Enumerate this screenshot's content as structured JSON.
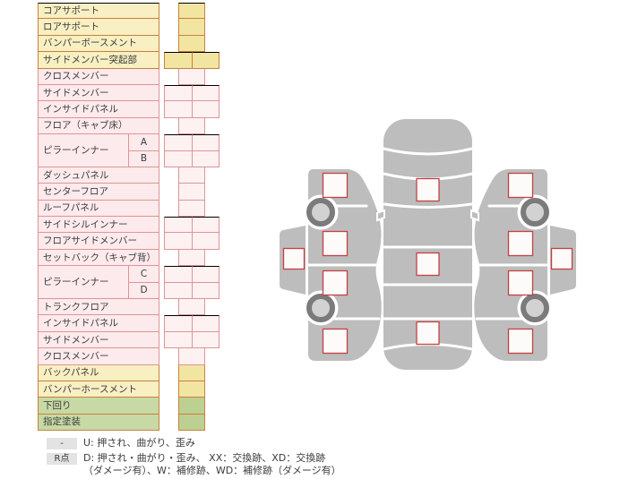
{
  "colors": {
    "text": "#3c3c3c",
    "yellow_bg": "#f8efc2",
    "yellow_cell_bg": "#f2e5a2",
    "warm_border": "#c9803a",
    "pink_bg": "#fdeaec",
    "pink_cell_bg": "#fdf1f2",
    "pink_border": "#dc9595",
    "green_bg": "#c7d9a5",
    "green_cell_bg": "#bcd191",
    "badge_bg": "#e3e3e3",
    "car_gray": "#bdbdbd",
    "wheel_ring": "#7b7b7b",
    "wheel_hub": "#d2d2d2",
    "mark_red": "#c64141",
    "mark_fill": "#fdfafa"
  },
  "parts_table": {
    "rows": [
      {
        "label": "コアサポート",
        "category": "yellow",
        "cells": 1
      },
      {
        "label": "ロアサポート",
        "category": "yellow",
        "cells": 1
      },
      {
        "label": "バンパーボースメント",
        "category": "yellow",
        "cells": 1
      },
      {
        "label": "サイドメンバー突起部",
        "category": "yellow",
        "cells": 2
      },
      {
        "label": "クロスメンバー",
        "category": "pink",
        "cells": 1
      },
      {
        "label": "サイドメンバー",
        "category": "pink",
        "cells": 2
      },
      {
        "label": "インサイドパネル",
        "category": "pink",
        "cells": 2
      },
      {
        "label": "フロア（キャブ床）",
        "category": "pink",
        "cells": 1
      },
      {
        "label": "ピラーインナー",
        "category": "pink",
        "cells": 2,
        "sub": [
          "A",
          "B"
        ]
      },
      {
        "label": "ダッシュパネル",
        "category": "pink",
        "cells": 1
      },
      {
        "label": "センターフロア",
        "category": "pink",
        "cells": 1
      },
      {
        "label": "ルーフパネル",
        "category": "pink",
        "cells": 1
      },
      {
        "label": "サイドシルインナー",
        "category": "pink",
        "cells": 2
      },
      {
        "label": "フロアサイドメンバー",
        "category": "pink",
        "cells": 2
      },
      {
        "label": "セットバック（キャブ背）",
        "category": "pink",
        "cells": 1
      },
      {
        "label": "ピラーインナー",
        "category": "pink",
        "cells": 2,
        "sub": [
          "C",
          "D"
        ]
      },
      {
        "label": "トランクフロア",
        "category": "pink",
        "cells": 1
      },
      {
        "label": "インサイドパネル",
        "category": "pink",
        "cells": 2
      },
      {
        "label": "サイドメンバー",
        "category": "pink",
        "cells": 2
      },
      {
        "label": "クロスメンバー",
        "category": "pink",
        "cells": 1
      },
      {
        "label": "バックパネル",
        "category": "yellow",
        "cells": 1
      },
      {
        "label": "バンパーホースメント",
        "category": "yellow",
        "cells": 1
      },
      {
        "label": "下回り",
        "category": "green",
        "cells": 1
      },
      {
        "label": "指定塗装",
        "category": "green",
        "cells": 1
      }
    ]
  },
  "legend": {
    "items": [
      {
        "badge": "-",
        "text": "U: 押され、曲がり、歪み"
      },
      {
        "badge": "R点",
        "text": "D: 押され・曲がり・歪み、 XX：交換跡、XD：交換跡",
        "text2": "（ダメージ有）、W：補修跡、WD：補修跡（ダメージ有）"
      }
    ]
  },
  "diagram": {
    "views": [
      {
        "name": "left-side-view",
        "markers": [
          [
            374,
            207,
            27
          ],
          [
            374,
            272,
            27
          ],
          [
            374,
            316,
            27
          ],
          [
            374,
            381,
            27
          ],
          [
            328,
            289,
            23
          ]
        ]
      },
      {
        "name": "top-view",
        "markers": [
          [
            477.5,
            212,
            25
          ],
          [
            477.5,
            295,
            25
          ],
          [
            477.5,
            372,
            25
          ]
        ]
      },
      {
        "name": "right-side-view",
        "markers": [
          [
            581,
            207,
            27
          ],
          [
            581,
            272,
            27
          ],
          [
            581,
            316,
            27
          ],
          [
            581,
            381,
            27
          ],
          [
            627,
            289,
            23
          ]
        ]
      }
    ]
  }
}
